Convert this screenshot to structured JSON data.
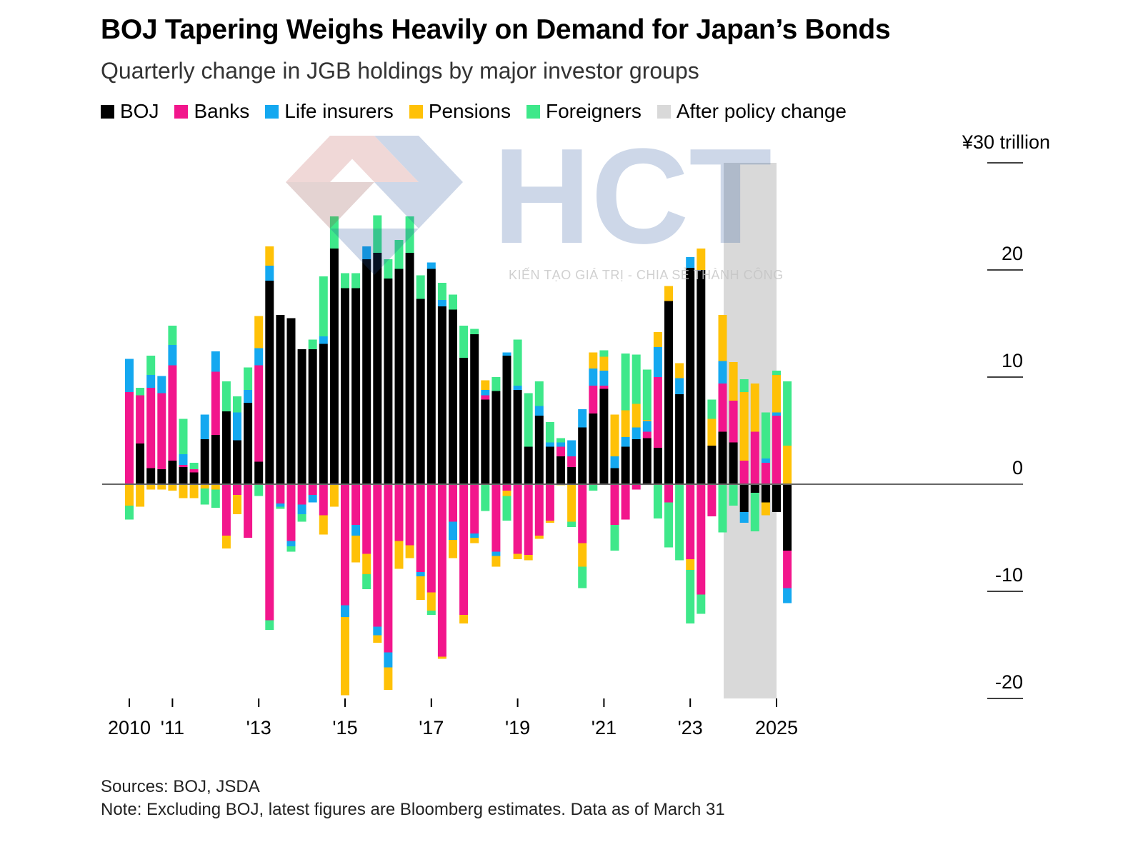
{
  "header": {
    "title": "BOJ Tapering Weighs Heavily on Demand for Japan’s Bonds",
    "subtitle": "Quarterly change in JGB holdings by major investor groups"
  },
  "legend": [
    {
      "label": "BOJ",
      "color": "#000000"
    },
    {
      "label": "Banks",
      "color": "#f2168c"
    },
    {
      "label": "Life insurers",
      "color": "#14a8f0"
    },
    {
      "label": "Pensions",
      "color": "#ffc107"
    },
    {
      "label": "Foreigners",
      "color": "#3ee88a"
    },
    {
      "label": "After policy change",
      "color": "#d9d9d9"
    }
  ],
  "footer": {
    "sources": "Sources: BOJ, JSDA",
    "note": "Note: Excluding BOJ, latest figures are Bloomberg estimates. Data as of March 31"
  },
  "watermark": {
    "logo_text": "HCT",
    "tagline": "KIẾN TẠO GIÁ TRỊ - CHIA SẺ THÀNH CÔNG"
  },
  "chart_data": {
    "type": "bar",
    "stacked": true,
    "unit_label": "¥30 trillion",
    "ylim": [
      -20,
      30
    ],
    "yticks": [
      30,
      20,
      10,
      0,
      -10,
      -20
    ],
    "ytick_labels": [
      "",
      "20",
      "10",
      "0",
      "-10",
      "-20"
    ],
    "xtick_labels": [
      {
        "label": "2010",
        "q": 0
      },
      {
        "label": "'11",
        "q": 4
      },
      {
        "label": "'13",
        "q": 12
      },
      {
        "label": "'15",
        "q": 20
      },
      {
        "label": "'17",
        "q": 28
      },
      {
        "label": "'19",
        "q": 36
      },
      {
        "label": "'21",
        "q": 44
      },
      {
        "label": "'23",
        "q": 52
      },
      {
        "label": "2025",
        "q": 60
      }
    ],
    "shaded_region": {
      "label": "After policy change",
      "from_q": 56,
      "to_q": 60
    },
    "series_order": [
      "BOJ",
      "Banks",
      "Life insurers",
      "Pensions",
      "Foreigners"
    ],
    "quarters": [
      {
        "BOJ": 0,
        "Banks": 8.6,
        "Life insurers": 3.1,
        "Pensions": -2.0,
        "Foreigners": -1.3
      },
      {
        "BOJ": 3.8,
        "Banks": 4.5,
        "Life insurers": 0,
        "Pensions": -2.1,
        "Foreigners": 0.7
      },
      {
        "BOJ": 1.5,
        "Banks": 7.5,
        "Life insurers": 1.2,
        "Pensions": -0.5,
        "Foreigners": 1.8
      },
      {
        "BOJ": 1.4,
        "Banks": 7.1,
        "Life insurers": 1.6,
        "Pensions": -0.5,
        "Foreigners": 0
      },
      {
        "BOJ": 2.2,
        "Banks": 8.9,
        "Life insurers": 1.9,
        "Pensions": -0.6,
        "Foreigners": 1.8
      },
      {
        "BOJ": 1.6,
        "Banks": 0.2,
        "Life insurers": 1.0,
        "Pensions": -1.3,
        "Foreigners": 3.3
      },
      {
        "BOJ": 1.1,
        "Banks": 0.3,
        "Life insurers": 0,
        "Pensions": -1.3,
        "Foreigners": 0.6
      },
      {
        "BOJ": 4.2,
        "Banks": 0,
        "Life insurers": 2.3,
        "Pensions": -0.4,
        "Foreigners": -1.5
      },
      {
        "BOJ": 4.6,
        "Banks": 5.9,
        "Life insurers": 1.9,
        "Pensions": -0.5,
        "Foreigners": -1.7
      },
      {
        "BOJ": 6.8,
        "Banks": -4.8,
        "Life insurers": 0,
        "Pensions": -1.2,
        "Foreigners": 2.8
      },
      {
        "BOJ": 4.1,
        "Banks": -1.0,
        "Life insurers": 2.6,
        "Pensions": -1.8,
        "Foreigners": 1.5
      },
      {
        "BOJ": 7.6,
        "Banks": -5.0,
        "Life insurers": 1.2,
        "Pensions": 0,
        "Foreigners": 2.1
      },
      {
        "BOJ": 2.1,
        "Banks": 9.0,
        "Life insurers": 1.6,
        "Pensions": 3.0,
        "Foreigners": -1.1
      },
      {
        "BOJ": 19.0,
        "Banks": -12.7,
        "Life insurers": 1.4,
        "Pensions": 1.8,
        "Foreigners": -0.9
      },
      {
        "BOJ": 15.8,
        "Banks": -1.8,
        "Life insurers": -0.3,
        "Pensions": 0,
        "Foreigners": -0.2
      },
      {
        "BOJ": 15.5,
        "Banks": -5.3,
        "Life insurers": -0.5,
        "Pensions": 0,
        "Foreigners": -0.5
      },
      {
        "BOJ": 12.6,
        "Banks": -1.9,
        "Life insurers": -0.9,
        "Pensions": 0,
        "Foreigners": -0.7
      },
      {
        "BOJ": 12.6,
        "Banks": -1.0,
        "Life insurers": -0.7,
        "Pensions": 0,
        "Foreigners": 0.9
      },
      {
        "BOJ": 13.1,
        "Banks": -2.9,
        "Life insurers": 0.7,
        "Pensions": -1.8,
        "Foreigners": 5.6
      },
      {
        "BOJ": 22.0,
        "Banks": 0,
        "Life insurers": 0,
        "Pensions": -2.1,
        "Foreigners": 3.0
      },
      {
        "BOJ": 18.3,
        "Banks": -11.3,
        "Life insurers": -1.1,
        "Pensions": -7.3,
        "Foreigners": 1.4
      },
      {
        "BOJ": 18.3,
        "Banks": -3.8,
        "Life insurers": -1.0,
        "Pensions": -2.5,
        "Foreigners": 1.4
      },
      {
        "BOJ": 21.0,
        "Banks": -6.5,
        "Life insurers": 1.2,
        "Pensions": -1.9,
        "Foreigners": -1.4
      },
      {
        "BOJ": 21.6,
        "Banks": -13.3,
        "Life insurers": -0.8,
        "Pensions": -0.7,
        "Foreigners": 3.5
      },
      {
        "BOJ": 19.2,
        "Banks": -15.7,
        "Life insurers": -1.4,
        "Pensions": -2.1,
        "Foreigners": 1.8
      },
      {
        "BOJ": 20.1,
        "Banks": -5.3,
        "Life insurers": 0,
        "Pensions": -2.6,
        "Foreigners": 2.7
      },
      {
        "BOJ": 21.6,
        "Banks": -5.7,
        "Life insurers": 0,
        "Pensions": -1.2,
        "Foreigners": 3.4
      },
      {
        "BOJ": 17.3,
        "Banks": -8.2,
        "Life insurers": -0.4,
        "Pensions": -2.2,
        "Foreigners": 2.2
      },
      {
        "BOJ": 20.1,
        "Banks": -10.1,
        "Life insurers": 0.6,
        "Pensions": -1.7,
        "Foreigners": -0.4
      },
      {
        "BOJ": 16.6,
        "Banks": -16.1,
        "Life insurers": 0.6,
        "Pensions": -0.2,
        "Foreigners": 1.6
      },
      {
        "BOJ": 16.3,
        "Banks": -3.5,
        "Life insurers": -1.7,
        "Pensions": -1.7,
        "Foreigners": 1.4
      },
      {
        "BOJ": 11.8,
        "Banks": -12.2,
        "Life insurers": 0,
        "Pensions": -0.8,
        "Foreigners": 3.0
      },
      {
        "BOJ": 14.0,
        "Banks": -4.6,
        "Life insurers": -0.4,
        "Pensions": -0.5,
        "Foreigners": 0.5
      },
      {
        "BOJ": 7.9,
        "Banks": 0.4,
        "Life insurers": 0.5,
        "Pensions": 0.9,
        "Foreigners": -2.5
      },
      {
        "BOJ": 8.7,
        "Banks": -6.3,
        "Life insurers": -0.4,
        "Pensions": -1.0,
        "Foreigners": 1.3
      },
      {
        "BOJ": 12.0,
        "Banks": -0.6,
        "Life insurers": 0.3,
        "Pensions": -0.5,
        "Foreigners": -2.3
      },
      {
        "BOJ": 8.8,
        "Banks": -6.5,
        "Life insurers": 0.4,
        "Pensions": -0.5,
        "Foreigners": 4.3
      },
      {
        "BOJ": 3.5,
        "Banks": -6.6,
        "Life insurers": 0,
        "Pensions": -0.5,
        "Foreigners": 5.0
      },
      {
        "BOJ": 6.4,
        "Banks": -4.8,
        "Life insurers": 0.9,
        "Pensions": -0.3,
        "Foreigners": 2.3
      },
      {
        "BOJ": 3.5,
        "Banks": -3.4,
        "Life insurers": 0.4,
        "Pensions": -0.2,
        "Foreigners": 1.9
      },
      {
        "BOJ": 2.6,
        "Banks": 0.9,
        "Life insurers": 0.4,
        "Pensions": -0.1,
        "Foreigners": 0.4
      },
      {
        "BOJ": 1.6,
        "Banks": 1.0,
        "Life insurers": 1.5,
        "Pensions": -3.5,
        "Foreigners": -0.5
      },
      {
        "BOJ": 5.3,
        "Banks": -5.5,
        "Life insurers": 1.7,
        "Pensions": -2.2,
        "Foreigners": -2.0
      },
      {
        "BOJ": 6.6,
        "Banks": 2.6,
        "Life insurers": 1.6,
        "Pensions": 1.5,
        "Foreigners": -0.6
      },
      {
        "BOJ": 8.9,
        "Banks": 0.3,
        "Life insurers": 1.4,
        "Pensions": 1.3,
        "Foreigners": 0.6
      },
      {
        "BOJ": 1.5,
        "Banks": -3.8,
        "Life insurers": 1.1,
        "Pensions": 3.9,
        "Foreigners": -2.4
      },
      {
        "BOJ": 3.5,
        "Banks": -3.3,
        "Life insurers": 0.9,
        "Pensions": 2.5,
        "Foreigners": 5.3
      },
      {
        "BOJ": 4.2,
        "Banks": -0.5,
        "Life insurers": 1.1,
        "Pensions": 2.2,
        "Foreigners": 4.6
      },
      {
        "BOJ": 4.3,
        "Banks": 0.6,
        "Life insurers": 1.0,
        "Pensions": 0.1,
        "Foreigners": 4.7
      },
      {
        "BOJ": 3.4,
        "Banks": 6.6,
        "Life insurers": 2.8,
        "Pensions": 1.4,
        "Foreigners": -3.2
      },
      {
        "BOJ": 17.1,
        "Banks": -1.7,
        "Life insurers": 0,
        "Pensions": 1.4,
        "Foreigners": -4.2
      },
      {
        "BOJ": 8.4,
        "Banks": 0,
        "Life insurers": 1.5,
        "Pensions": 1.4,
        "Foreigners": -7.1
      },
      {
        "BOJ": 20.2,
        "Banks": -7.0,
        "Life insurers": 1.0,
        "Pensions": -1.0,
        "Foreigners": -5.0
      },
      {
        "BOJ": 20.0,
        "Banks": -10.3,
        "Life insurers": 0,
        "Pensions": 2.0,
        "Foreigners": -1.8
      },
      {
        "BOJ": 3.6,
        "Banks": -3.0,
        "Life insurers": 0,
        "Pensions": 2.5,
        "Foreigners": 1.8
      },
      {
        "BOJ": 4.9,
        "Banks": 4.5,
        "Life insurers": 2.1,
        "Pensions": 4.3,
        "Foreigners": -4.5
      },
      {
        "BOJ": 3.9,
        "Banks": 3.9,
        "Life insurers": 0,
        "Pensions": 3.6,
        "Foreigners": -2.0
      },
      {
        "BOJ": -2.6,
        "Banks": 2.2,
        "Life insurers": -1.0,
        "Pensions": 6.4,
        "Foreigners": 1.2
      },
      {
        "BOJ": -0.8,
        "Banks": 4.9,
        "Life insurers": 0,
        "Pensions": 4.5,
        "Foreigners": -3.6
      },
      {
        "BOJ": -1.7,
        "Banks": 2.0,
        "Life insurers": 0.4,
        "Pensions": -1.2,
        "Foreigners": 4.3
      },
      {
        "BOJ": -2.6,
        "Banks": 6.4,
        "Life insurers": 0.3,
        "Pensions": 3.5,
        "Foreigners": 0.4
      },
      {
        "BOJ": -6.2,
        "Banks": -3.5,
        "Life insurers": -1.4,
        "Pensions": 3.6,
        "Foreigners": 6.0
      }
    ]
  }
}
